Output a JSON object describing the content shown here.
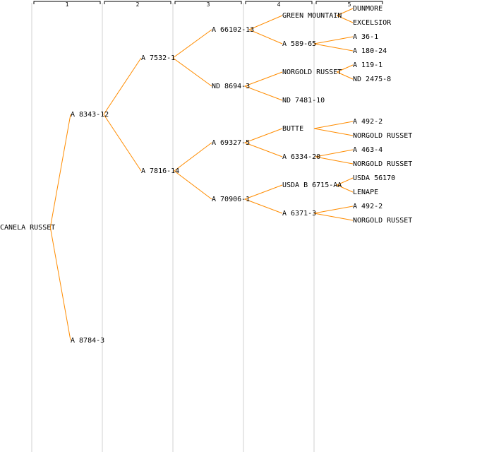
{
  "colors": {
    "edge": "#ff8c00",
    "column_line": "#e8e8e8",
    "text": "#000000",
    "background": "#ffffff"
  },
  "generations": [
    "1",
    "2",
    "3",
    "4",
    "5"
  ],
  "tree": {
    "label": "CANELA RUSSET",
    "children": [
      {
        "label": "A 8343-12",
        "children": [
          {
            "label": "A 7532-1",
            "children": [
              {
                "label": "A 66102-13",
                "children": [
                  {
                    "label": "GREEN MOUNTAIN",
                    "children": [
                      {
                        "label": "DUNMORE"
                      },
                      {
                        "label": "EXCELSIOR"
                      }
                    ]
                  },
                  {
                    "label": "A 589-65",
                    "children": [
                      {
                        "label": "A 36-1"
                      },
                      {
                        "label": "A 180-24"
                      }
                    ]
                  }
                ]
              },
              {
                "label": "ND 8694-3",
                "children": [
                  {
                    "label": "NORGOLD RUSSET",
                    "children": [
                      {
                        "label": "A 119-1"
                      },
                      {
                        "label": "ND 2475-8"
                      }
                    ]
                  },
                  {
                    "label": "ND 7481-10"
                  }
                ]
              }
            ]
          },
          {
            "label": "A 7816-14",
            "children": [
              {
                "label": "A 69327-5",
                "children": [
                  {
                    "label": "BUTTE",
                    "children": [
                      {
                        "label": "A 492-2"
                      },
                      {
                        "label": "NORGOLD RUSSET"
                      }
                    ]
                  },
                  {
                    "label": "A 6334-20",
                    "children": [
                      {
                        "label": "A 463-4"
                      },
                      {
                        "label": "NORGOLD RUSSET"
                      }
                    ]
                  }
                ]
              },
              {
                "label": "A 70906-1",
                "children": [
                  {
                    "label": "USDA B 6715-AA",
                    "children": [
                      {
                        "label": "USDA 56170"
                      },
                      {
                        "label": "LENAPE"
                      }
                    ]
                  },
                  {
                    "label": "A 6371-3",
                    "children": [
                      {
                        "label": "A 492-2"
                      },
                      {
                        "label": "NORGOLD RUSSET"
                      }
                    ]
                  }
                ]
              }
            ]
          }
        ]
      },
      {
        "label": "A 8784-3"
      }
    ]
  }
}
